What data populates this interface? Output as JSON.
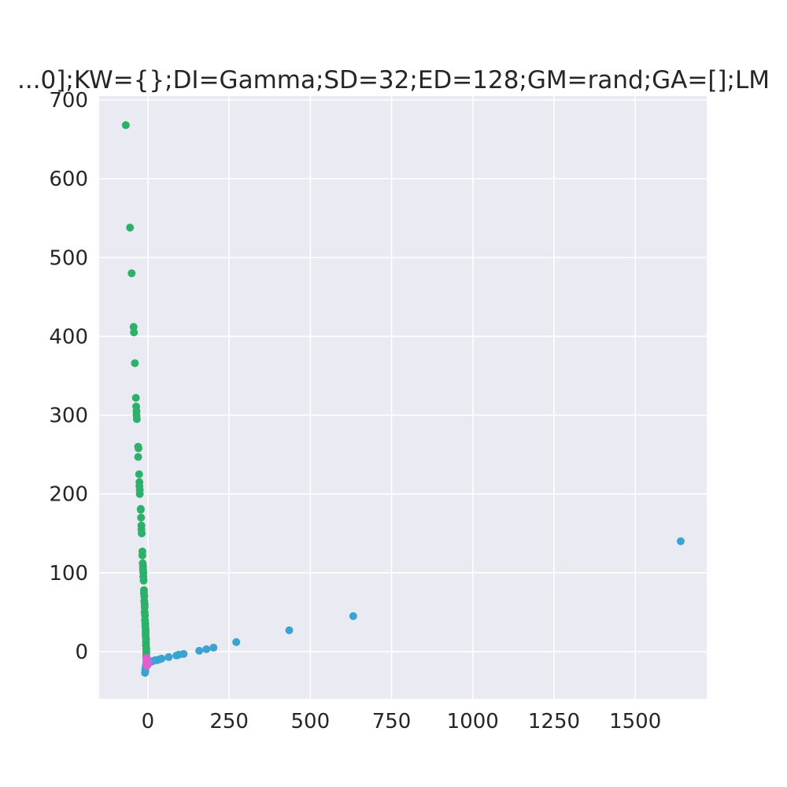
{
  "chart_data": {
    "type": "scatter",
    "title": "...0];KW={};DI=Gamma;SD=32;ED=128;GM=rand;GA=[];LM",
    "xlabel": "",
    "ylabel": "",
    "xlim": [
      -150,
      1720
    ],
    "ylim": [
      -60,
      705
    ],
    "xticks": [
      0,
      250,
      500,
      750,
      1000,
      1250,
      1500
    ],
    "xtick_labels": [
      "0",
      "250",
      "500",
      "750",
      "1000",
      "1250",
      "1500"
    ],
    "yticks": [
      0,
      100,
      200,
      300,
      400,
      500,
      600,
      700
    ],
    "ytick_labels": [
      "0",
      "100",
      "200",
      "300",
      "400",
      "500",
      "600",
      "700"
    ],
    "grid": true,
    "background": "#EAEAF2",
    "series": [
      {
        "color": "#2DB06A",
        "points": [
          [
            -68,
            668
          ],
          [
            -55,
            538
          ],
          [
            -50,
            480
          ],
          [
            -44,
            412
          ],
          [
            -43,
            405
          ],
          [
            -40,
            366
          ],
          [
            -37,
            322
          ],
          [
            -36,
            311
          ],
          [
            -35,
            305
          ],
          [
            -35,
            300
          ],
          [
            -34,
            295
          ],
          [
            -30,
            260
          ],
          [
            -29,
            258
          ],
          [
            -30,
            247
          ],
          [
            -27,
            225
          ],
          [
            -26,
            215
          ],
          [
            -26,
            210
          ],
          [
            -25,
            205
          ],
          [
            -25,
            200
          ],
          [
            -22,
            181
          ],
          [
            -22,
            180
          ],
          [
            -21,
            170
          ],
          [
            -20,
            160
          ],
          [
            -20,
            155
          ],
          [
            -19,
            150
          ],
          [
            -17,
            127
          ],
          [
            -17,
            122
          ],
          [
            -16,
            112
          ],
          [
            -15,
            108
          ],
          [
            -15,
            104
          ],
          [
            -14,
            100
          ],
          [
            -14,
            95
          ],
          [
            -13,
            90
          ],
          [
            -12,
            78
          ],
          [
            -12,
            74
          ],
          [
            -11,
            70
          ],
          [
            -11,
            64
          ],
          [
            -10,
            60
          ],
          [
            -10,
            56
          ],
          [
            -10,
            50
          ],
          [
            -9,
            46
          ],
          [
            -9,
            40
          ],
          [
            -8,
            36
          ],
          [
            -8,
            32
          ],
          [
            -7,
            28
          ],
          [
            -7,
            24
          ],
          [
            -7,
            20
          ],
          [
            -6,
            16
          ],
          [
            -6,
            12
          ],
          [
            -6,
            8
          ],
          [
            -5,
            4
          ],
          [
            -5,
            0
          ],
          [
            -5,
            -4
          ],
          [
            -5,
            -8
          ]
        ]
      },
      {
        "color": "#3BA3D0",
        "points": [
          [
            1640,
            140
          ],
          [
            632,
            45
          ],
          [
            435,
            27
          ],
          [
            272,
            12
          ],
          [
            202,
            5
          ],
          [
            180,
            3
          ],
          [
            158,
            1
          ],
          [
            110,
            -3
          ],
          [
            95,
            -4
          ],
          [
            88,
            -5
          ],
          [
            64,
            -7
          ],
          [
            42,
            -9
          ],
          [
            35,
            -10
          ],
          [
            28,
            -11
          ],
          [
            22,
            -11
          ],
          [
            16,
            -12
          ],
          [
            10,
            -13
          ],
          [
            5,
            -13
          ],
          [
            0,
            -14
          ],
          [
            -3,
            -15
          ],
          [
            -5,
            -16
          ],
          [
            -6,
            -18
          ],
          [
            -7,
            -20
          ],
          [
            -8,
            -22
          ],
          [
            -8,
            -25
          ],
          [
            -9,
            -27
          ]
        ]
      },
      {
        "color": "#E05FD0",
        "points": [
          [
            -4,
            -8
          ],
          [
            -3,
            -9
          ],
          [
            -2,
            -10
          ],
          [
            -4,
            -11
          ],
          [
            -1,
            -12
          ],
          [
            -3,
            -13
          ],
          [
            -5,
            -14
          ],
          [
            -2,
            -14
          ],
          [
            0,
            -15
          ],
          [
            -4,
            -16
          ],
          [
            -1,
            -17
          ],
          [
            -3,
            -18
          ]
        ]
      }
    ]
  }
}
